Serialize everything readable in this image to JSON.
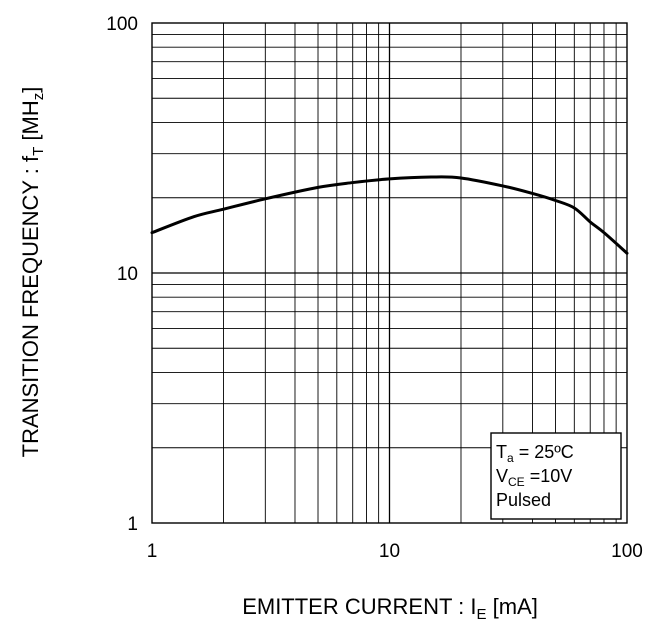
{
  "chart_data": {
    "type": "line",
    "x_scale": "log",
    "y_scale": "log",
    "xlim": [
      1,
      100
    ],
    "ylim": [
      1,
      100
    ],
    "grid": true,
    "xlabel": {
      "main": "EMITTER CURRENT : I",
      "sub": "E",
      "unit": " [mA]"
    },
    "ylabel": {
      "main": "TRANSITION FREQUENCY : f",
      "sub": "T",
      "unit": " [MH",
      "unit_sub": "z",
      "unit_end": "]"
    },
    "x_ticks": [
      {
        "value": 1,
        "label": "1"
      },
      {
        "value": 10,
        "label": "10"
      },
      {
        "value": 100,
        "label": "100"
      }
    ],
    "y_ticks": [
      {
        "value": 1,
        "label": "1"
      },
      {
        "value": 10,
        "label": "10"
      },
      {
        "value": 100,
        "label": "100"
      }
    ],
    "series": [
      {
        "x": [
          1,
          1.5,
          2,
          3,
          5,
          7,
          10,
          15,
          20,
          30,
          40,
          50,
          60,
          70,
          80,
          100
        ],
        "y": [
          14.5,
          16.8,
          18.0,
          19.8,
          22.0,
          23.0,
          23.8,
          24.2,
          24.0,
          22.3,
          20.8,
          19.5,
          18.2,
          16.0,
          14.5,
          12.0
        ]
      }
    ],
    "annotation": {
      "line1_main": "T",
      "line1_sub": "a",
      "line1_rest": " = 25ºC",
      "line2_main": "V",
      "line2_sub": "CE",
      "line2_rest": " =10V",
      "line3": "Pulsed"
    }
  }
}
